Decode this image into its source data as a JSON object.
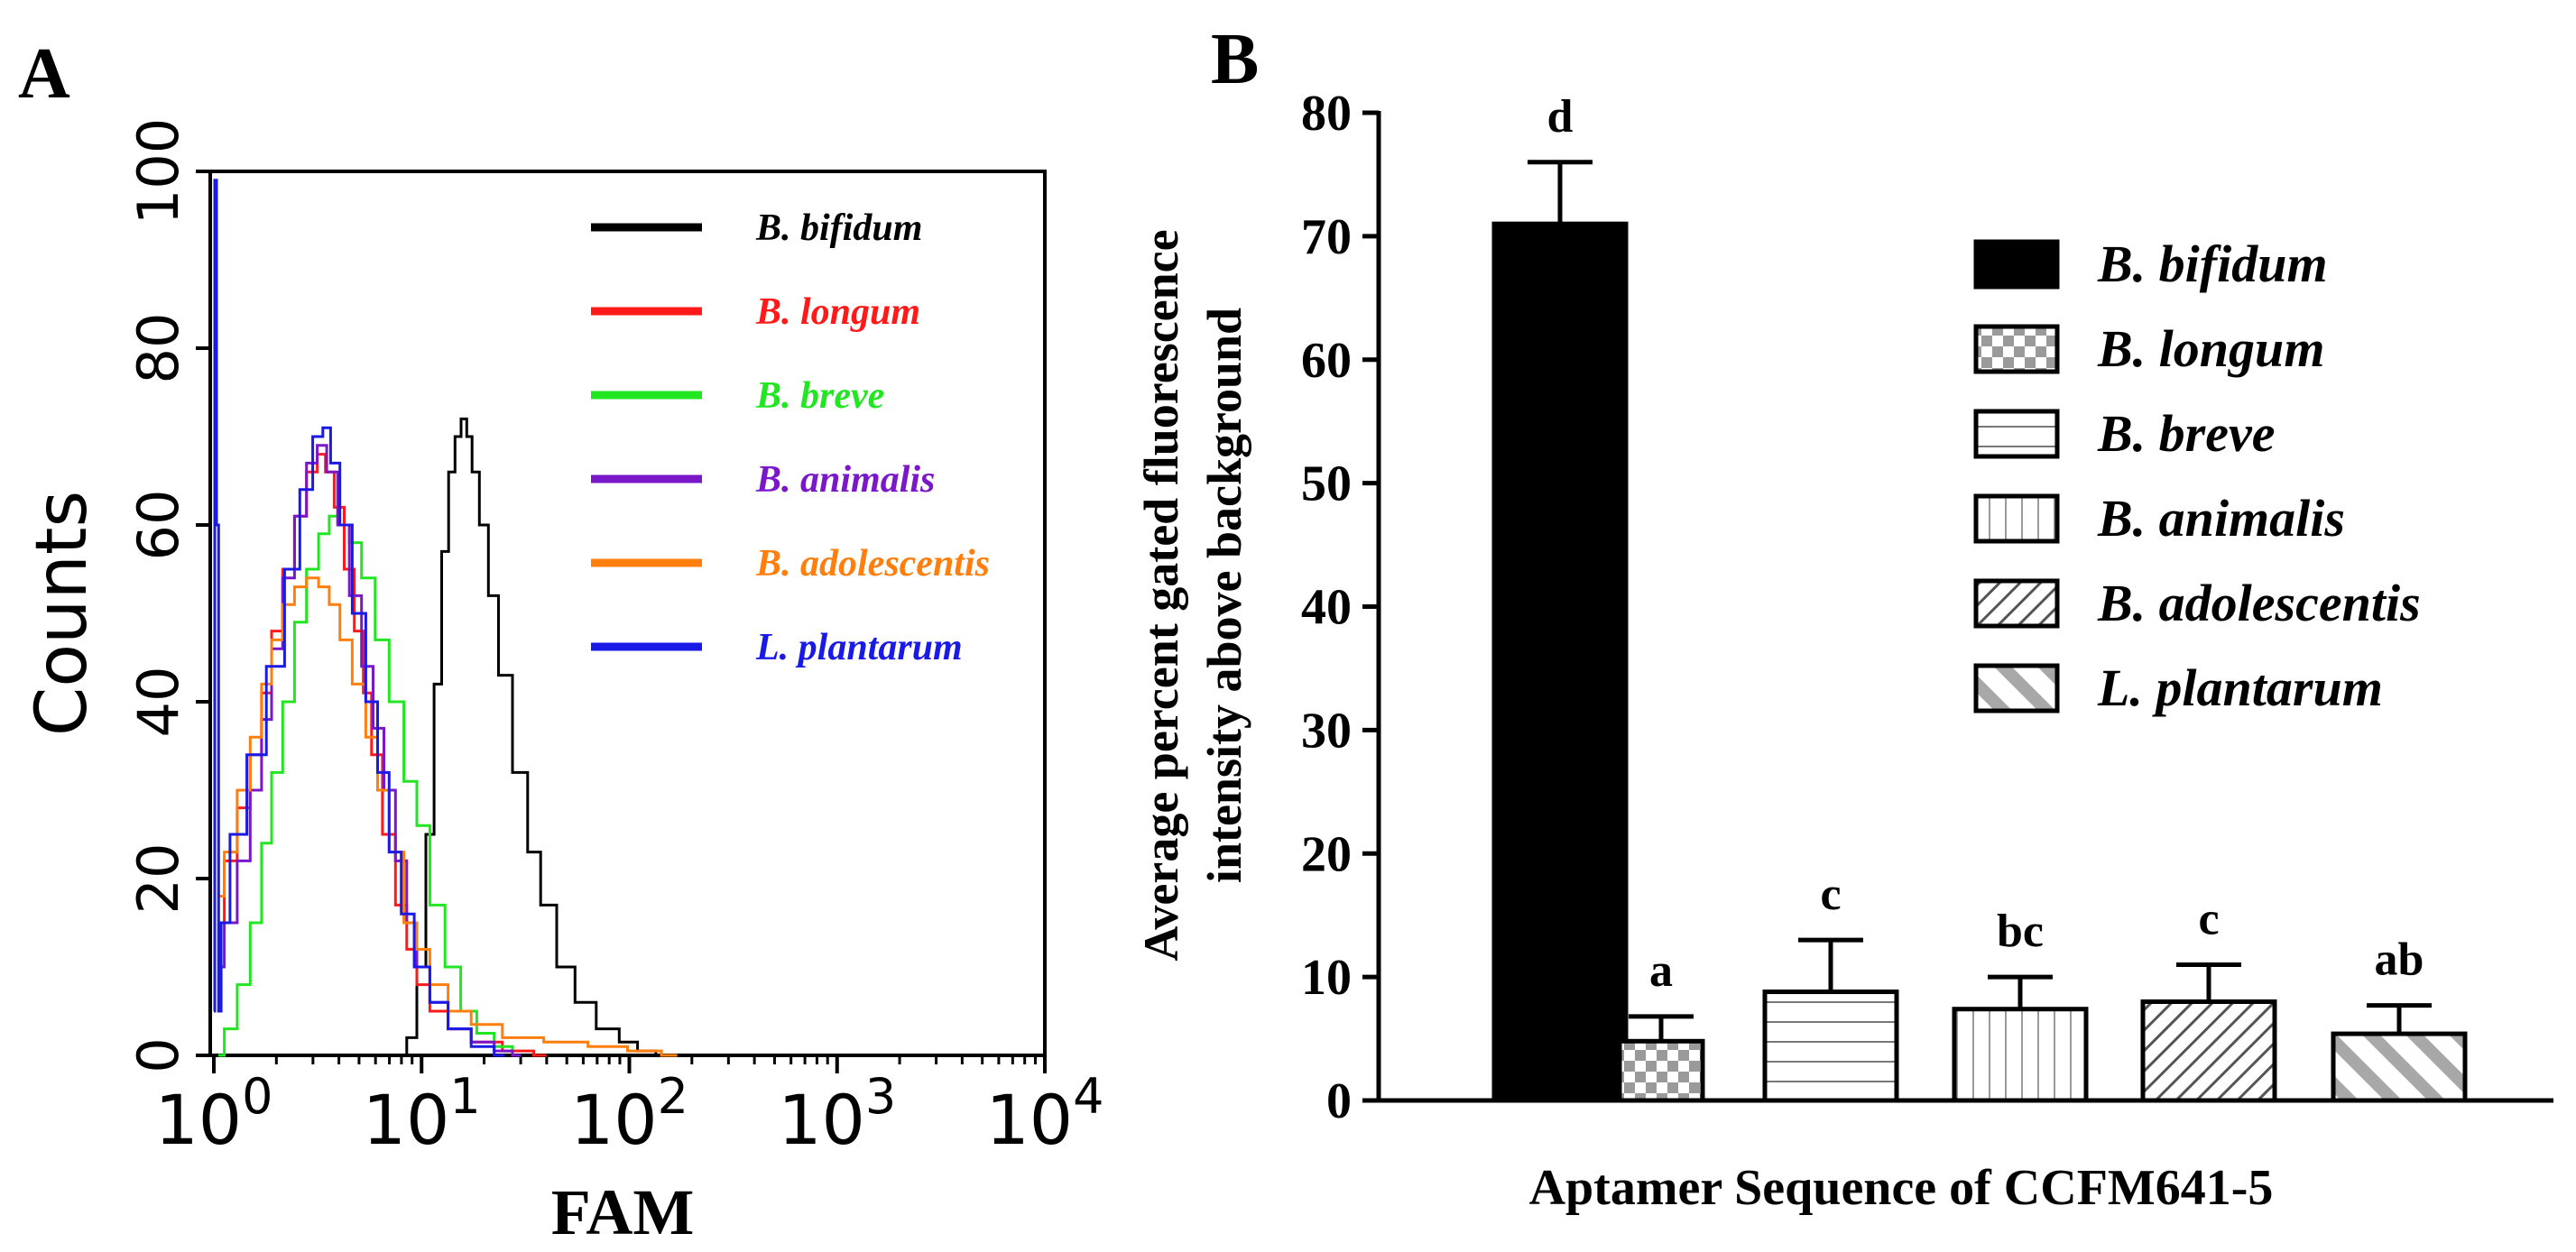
{
  "colors": {
    "b_bifidum": "#000000",
    "b_longum": "#ff1a1a",
    "b_breve": "#22e622",
    "b_animalis": "#7a17c9",
    "b_adolescentis": "#ff7f0e",
    "l_plantarum": "#1a1ae6"
  },
  "chart_data": [
    {
      "panel": "A",
      "type": "line",
      "title": "",
      "xlabel": "FAM",
      "ylabel": "Counts",
      "xscale": "log",
      "xlim_exp": [
        0,
        4
      ],
      "ylim": [
        0,
        100
      ],
      "x_ticks": [
        {
          "base": "10",
          "exp": "0",
          "value": 1
        },
        {
          "base": "10",
          "exp": "1",
          "value": 10
        },
        {
          "base": "10",
          "exp": "2",
          "value": 100
        },
        {
          "base": "10",
          "exp": "3",
          "value": 1000
        },
        {
          "base": "10",
          "exp": "4",
          "value": 10000
        }
      ],
      "y_ticks": [
        "0",
        "20",
        "40",
        "60",
        "80",
        "100"
      ],
      "legend_position": "top-right",
      "series": [
        {
          "name": "B. bifidum",
          "color_key": "b_bifidum",
          "points": [
            [
              8,
              0
            ],
            [
              9,
              2
            ],
            [
              10,
              10
            ],
            [
              11,
              25
            ],
            [
              12,
              42
            ],
            [
              13,
              57
            ],
            [
              14,
              66
            ],
            [
              15,
              70
            ],
            [
              16,
              72
            ],
            [
              17,
              70
            ],
            [
              18,
              66
            ],
            [
              20,
              60
            ],
            [
              22,
              52
            ],
            [
              25,
              43
            ],
            [
              30,
              32
            ],
            [
              35,
              23
            ],
            [
              40,
              17
            ],
            [
              50,
              10
            ],
            [
              60,
              6
            ],
            [
              80,
              3
            ],
            [
              100,
              1.5
            ],
            [
              120,
              0.5
            ],
            [
              150,
              0
            ]
          ]
        },
        {
          "name": "B. longum",
          "color_key": "b_longum",
          "points": [
            [
              1.05,
              15
            ],
            [
              1.2,
              22
            ],
            [
              1.4,
              28
            ],
            [
              1.6,
              34
            ],
            [
              1.8,
              41
            ],
            [
              2,
              48
            ],
            [
              2.3,
              55
            ],
            [
              2.6,
              61
            ],
            [
              3,
              66
            ],
            [
              3.3,
              68
            ],
            [
              3.6,
              66
            ],
            [
              4,
              62
            ],
            [
              4.5,
              55
            ],
            [
              5,
              48
            ],
            [
              5.5,
              41
            ],
            [
              6,
              34
            ],
            [
              7,
              25
            ],
            [
              8,
              17
            ],
            [
              9,
              12
            ],
            [
              10,
              8
            ],
            [
              12,
              5
            ],
            [
              15,
              3
            ],
            [
              20,
              1.5
            ],
            [
              30,
              0.5
            ],
            [
              40,
              0
            ]
          ]
        },
        {
          "name": "B. breve",
          "color_key": "b_breve",
          "points": [
            [
              1.05,
              0
            ],
            [
              1.2,
              3
            ],
            [
              1.4,
              8
            ],
            [
              1.6,
              15
            ],
            [
              1.8,
              24
            ],
            [
              2,
              32
            ],
            [
              2.3,
              40
            ],
            [
              2.6,
              49
            ],
            [
              3,
              55
            ],
            [
              3.4,
              59
            ],
            [
              3.8,
              61
            ],
            [
              4.2,
              60
            ],
            [
              4.8,
              58
            ],
            [
              5.5,
              54
            ],
            [
              6.5,
              47
            ],
            [
              7.5,
              40
            ],
            [
              9,
              31
            ],
            [
              10,
              26
            ],
            [
              12,
              17
            ],
            [
              14,
              10
            ],
            [
              17,
              5
            ],
            [
              20,
              2.5
            ],
            [
              25,
              1
            ],
            [
              30,
              0
            ]
          ]
        },
        {
          "name": "B. animalis",
          "color_key": "b_animalis",
          "points": [
            [
              1.05,
              10
            ],
            [
              1.2,
              15
            ],
            [
              1.4,
              22
            ],
            [
              1.6,
              30
            ],
            [
              1.8,
              38
            ],
            [
              2,
              46
            ],
            [
              2.3,
              54
            ],
            [
              2.6,
              61
            ],
            [
              3,
              67
            ],
            [
              3.3,
              69
            ],
            [
              3.7,
              66
            ],
            [
              4.2,
              60
            ],
            [
              4.8,
              52
            ],
            [
              5.5,
              44
            ],
            [
              6.2,
              37
            ],
            [
              7,
              30
            ],
            [
              8,
              22
            ],
            [
              9,
              15
            ],
            [
              10,
              10
            ],
            [
              12,
              6
            ],
            [
              15,
              3
            ],
            [
              20,
              1.5
            ],
            [
              25,
              0.5
            ],
            [
              30,
              0
            ]
          ]
        },
        {
          "name": "B. adolescentis",
          "color_key": "b_adolescentis",
          "points": [
            [
              1.05,
              18
            ],
            [
              1.2,
              23
            ],
            [
              1.4,
              30
            ],
            [
              1.6,
              36
            ],
            [
              1.8,
              42
            ],
            [
              2,
              47
            ],
            [
              2.3,
              51
            ],
            [
              2.6,
              53
            ],
            [
              3,
              54
            ],
            [
              3.4,
              53
            ],
            [
              3.8,
              51
            ],
            [
              4.3,
              47
            ],
            [
              5,
              42
            ],
            [
              5.8,
              36
            ],
            [
              6.5,
              30
            ],
            [
              7.5,
              23
            ],
            [
              9,
              15
            ],
            [
              10,
              12
            ],
            [
              12,
              8
            ],
            [
              15,
              5
            ],
            [
              20,
              3.5
            ],
            [
              30,
              2
            ],
            [
              50,
              1.5
            ],
            [
              80,
              1
            ],
            [
              120,
              0.5
            ],
            [
              170,
              0
            ]
          ]
        },
        {
          "name": "L. plantarum",
          "color_key": "l_plantarum",
          "points": [
            [
              1.0,
              5
            ],
            [
              1.02,
              99
            ],
            [
              1.04,
              60
            ],
            [
              1.07,
              5
            ],
            [
              1.1,
              15
            ],
            [
              1.3,
              25
            ],
            [
              1.6,
              34
            ],
            [
              2,
              44
            ],
            [
              2.4,
              55
            ],
            [
              2.8,
              64
            ],
            [
              3.2,
              70
            ],
            [
              3.5,
              71
            ],
            [
              3.8,
              67
            ],
            [
              4.3,
              60
            ],
            [
              5,
              50
            ],
            [
              5.8,
              40
            ],
            [
              6.5,
              32
            ],
            [
              7.5,
              23
            ],
            [
              8.5,
              16
            ],
            [
              10,
              10
            ],
            [
              12,
              6
            ],
            [
              15,
              3
            ],
            [
              20,
              1
            ],
            [
              25,
              0
            ]
          ]
        }
      ]
    },
    {
      "panel": "B",
      "type": "bar",
      "title": "",
      "xlabel": "Aptamer Sequence of CCFM641-5",
      "ylabel_line1": "Average percent gated fluorescence",
      "ylabel_line2": "intensity  above background",
      "ylim": [
        0,
        80
      ],
      "y_ticks": [
        "0",
        "10",
        "20",
        "30",
        "40",
        "50",
        "60",
        "70",
        "80"
      ],
      "legend_position": "top-right",
      "categories": [
        "B. bifidum",
        "B. longum",
        "B. breve",
        "B. animalis",
        "B. adolescentis",
        "L. plantarum"
      ],
      "values": [
        71,
        4.8,
        8.8,
        7.4,
        8.0,
        5.4
      ],
      "errors": [
        5.0,
        2.0,
        4.2,
        2.6,
        3.0,
        2.3
      ],
      "significance": [
        "d",
        "a",
        "c",
        "bc",
        "c",
        "ab"
      ],
      "patterns": [
        "solid",
        "checker",
        "horizontal",
        "vertical",
        "diagonal-fine",
        "diagonal-wide"
      ]
    }
  ],
  "panel_labels": {
    "a": "A",
    "b": "B"
  }
}
